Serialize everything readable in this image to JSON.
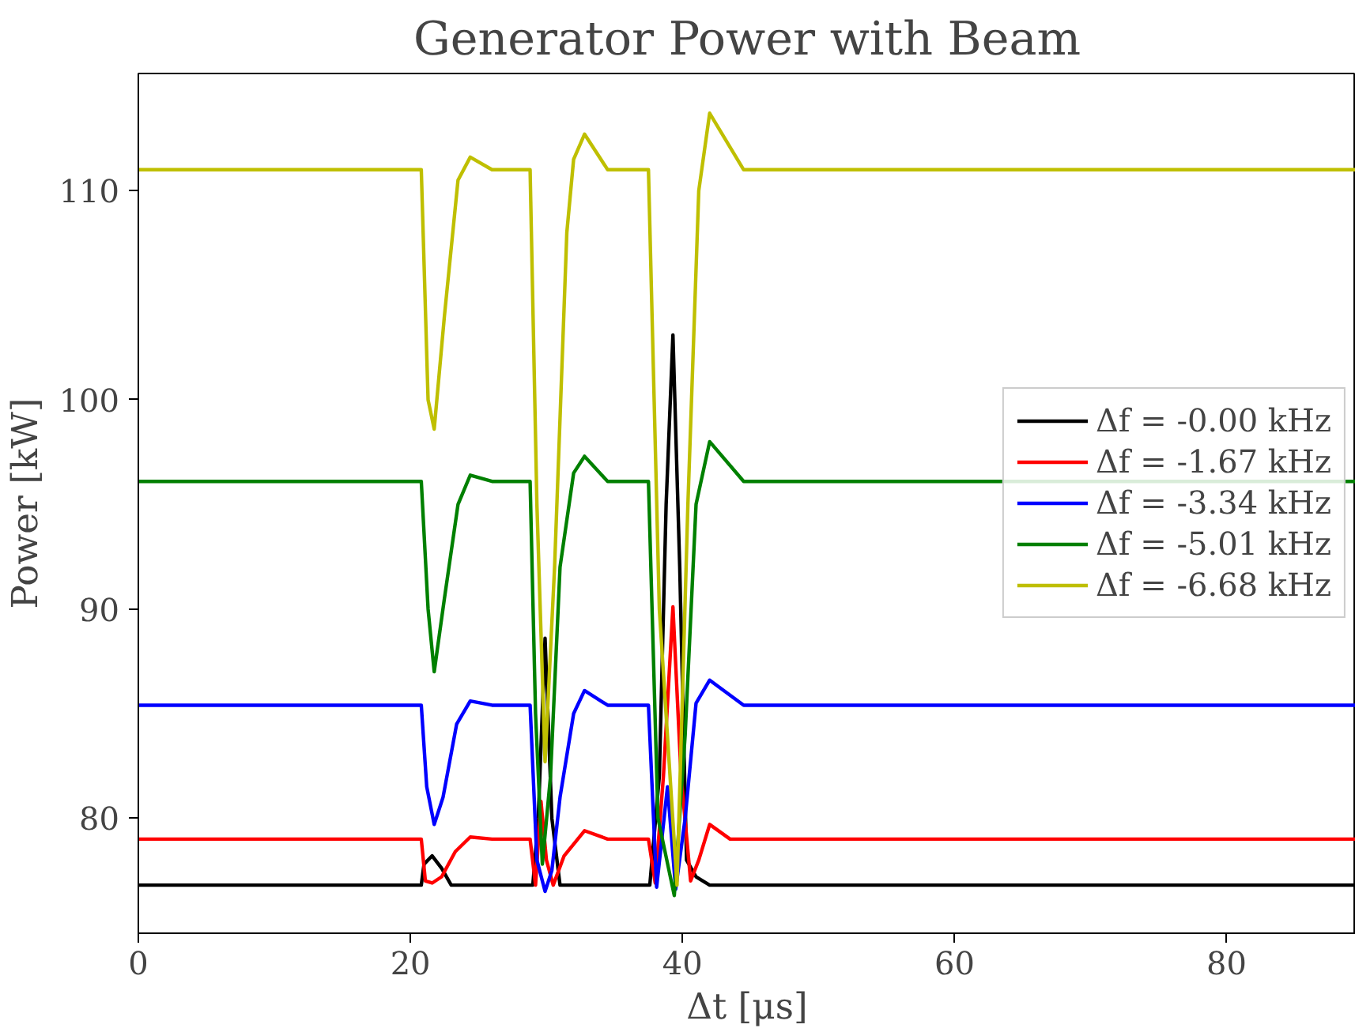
{
  "chart_data": {
    "type": "line",
    "title": "Generator Power with Beam",
    "xlabel": "Δt [μs]",
    "ylabel": "Power [kW]",
    "xlim": [
      0,
      89.5
    ],
    "xticks": [
      0,
      20,
      40,
      60,
      80
    ],
    "ylim": [
      74.5,
      115.6
    ],
    "yticks": [
      80,
      90,
      100,
      110
    ],
    "grid": false,
    "legend": "right",
    "marker": "none",
    "line_style": "solid",
    "series": [
      {
        "name": "Δf = -0.00 kHz",
        "color": "#000000",
        "x": [
          0,
          20.8,
          21.0,
          21.6,
          22.3,
          23.0,
          29.0,
          29.4,
          29.9,
          30.4,
          31.0,
          37.6,
          38.3,
          38.8,
          39.3,
          39.8,
          40.3,
          41.0,
          42.0,
          89.5
        ],
        "values": [
          76.8,
          76.8,
          77.8,
          78.2,
          77.6,
          76.8,
          76.8,
          80.0,
          88.6,
          80.0,
          76.8,
          76.8,
          82.0,
          95.0,
          103.1,
          92.0,
          78.0,
          77.2,
          76.8,
          76.8
        ]
      },
      {
        "name": "Δf = -1.67 kHz",
        "color": "#ff0000",
        "x": [
          0,
          20.8,
          21.1,
          21.6,
          22.3,
          23.3,
          24.4,
          26.0,
          28.8,
          29.2,
          29.6,
          30.0,
          30.5,
          31.3,
          32.8,
          34.5,
          37.5,
          38.0,
          38.6,
          39.3,
          39.9,
          40.6,
          41.2,
          42.0,
          43.5,
          89.5
        ],
        "values": [
          79.0,
          79.0,
          77.0,
          76.9,
          77.2,
          78.4,
          79.1,
          79.0,
          79.0,
          76.8,
          80.8,
          78.0,
          76.8,
          78.2,
          79.4,
          79.0,
          79.0,
          76.9,
          82.0,
          90.1,
          82.0,
          77.0,
          78.0,
          79.7,
          79.0,
          79.0
        ]
      },
      {
        "name": "Δf = -3.34 kHz",
        "color": "#0000ff",
        "x": [
          0,
          20.8,
          21.2,
          21.75,
          22.4,
          23.4,
          24.4,
          26.0,
          28.8,
          29.3,
          29.9,
          30.4,
          31.0,
          32.0,
          32.8,
          34.5,
          37.5,
          38.1,
          38.9,
          39.5,
          40.2,
          41.0,
          42.0,
          44.5,
          89.5
        ],
        "values": [
          85.4,
          85.4,
          81.5,
          79.7,
          81.0,
          84.5,
          85.6,
          85.4,
          85.4,
          78.0,
          76.5,
          77.5,
          81.0,
          85.0,
          86.1,
          85.4,
          85.4,
          76.7,
          81.5,
          76.6,
          80.0,
          85.5,
          86.6,
          85.4,
          85.4
        ]
      },
      {
        "name": "Δf = -5.01 kHz",
        "color": "#008000",
        "x": [
          0,
          20.8,
          21.3,
          21.75,
          22.5,
          23.5,
          24.4,
          26.0,
          28.8,
          29.2,
          29.7,
          30.3,
          31.0,
          32.0,
          32.8,
          34.5,
          37.5,
          38.2,
          39.4,
          40.2,
          41.0,
          42.0,
          44.5,
          89.5
        ],
        "values": [
          96.1,
          96.1,
          90.0,
          87.0,
          90.5,
          95.0,
          96.4,
          96.1,
          96.1,
          85.0,
          77.8,
          82.0,
          92.0,
          96.5,
          97.3,
          96.1,
          96.1,
          80.0,
          76.3,
          84.0,
          95.0,
          98.0,
          96.1,
          96.1
        ]
      },
      {
        "name": "Δf = -6.68 kHz",
        "color": "#bfbf00",
        "x": [
          0,
          20.8,
          21.3,
          21.75,
          22.5,
          23.5,
          24.4,
          26.0,
          28.8,
          29.3,
          29.9,
          30.6,
          31.5,
          32.0,
          32.8,
          34.5,
          37.5,
          38.3,
          39.6,
          40.4,
          41.2,
          42.0,
          44.5,
          89.5
        ],
        "values": [
          111.0,
          111.0,
          100.0,
          98.6,
          104.0,
          110.5,
          111.6,
          111.0,
          111.0,
          95.0,
          82.7,
          92.0,
          108.0,
          111.5,
          112.7,
          111.0,
          111.0,
          90.0,
          76.8,
          95.0,
          110.0,
          113.7,
          111.0,
          111.0
        ]
      }
    ]
  }
}
